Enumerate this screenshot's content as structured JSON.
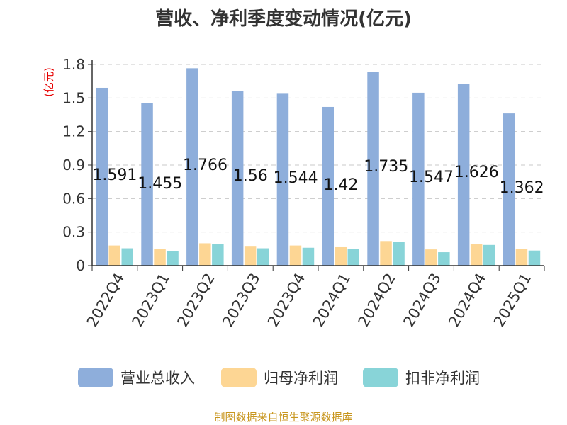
{
  "title": "营收、净利季度变动情况(亿元)",
  "source": "制图数据来自恒生聚源数据库",
  "colors": {
    "revenue": "#8eaedb",
    "net_profit": "#fdd694",
    "non_gaap_profit": "#88d4d8",
    "label": "#111111",
    "axis_unit": "#e60000",
    "grid": "#c8c8c8",
    "axis": "#333333"
  },
  "chart_data": {
    "type": "bar",
    "ylabel": "(亿元)",
    "ylim": [
      0,
      1.8
    ],
    "yticks": [
      "0",
      "0.3",
      "0.6",
      "0.9",
      "1.2",
      "1.5",
      "1.8"
    ],
    "grid": true,
    "legend_position": "bottom",
    "categories": [
      "2022Q4",
      "2023Q1",
      "2023Q2",
      "2023Q3",
      "2023Q4",
      "2024Q1",
      "2024Q2",
      "2024Q3",
      "2024Q4",
      "2025Q1"
    ],
    "series": [
      {
        "name": "营业总收入",
        "values": [
          1.591,
          1.455,
          1.766,
          1.56,
          1.544,
          1.42,
          1.735,
          1.547,
          1.626,
          1.362
        ],
        "labels": [
          "1.591",
          "1.455",
          "1.766",
          "1.56",
          "1.544",
          "1.42",
          "1.735",
          "1.547",
          "1.626",
          "1.362"
        ]
      },
      {
        "name": "归母净利润",
        "values": [
          0.18,
          0.15,
          0.2,
          0.17,
          0.18,
          0.165,
          0.22,
          0.145,
          0.19,
          0.15
        ]
      },
      {
        "name": "扣非净利润",
        "values": [
          0.155,
          0.13,
          0.19,
          0.155,
          0.16,
          0.15,
          0.21,
          0.12,
          0.185,
          0.135
        ]
      }
    ]
  }
}
